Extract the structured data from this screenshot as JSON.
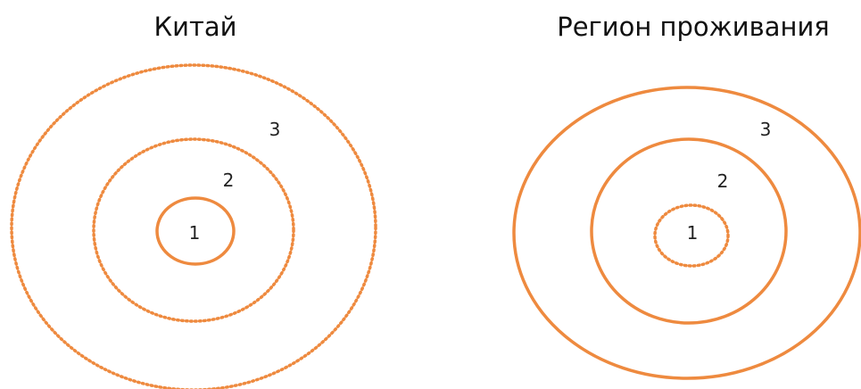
{
  "colors": {
    "ring": "#ee8a3f",
    "text": "#111111",
    "background": "#ffffff"
  },
  "panels": [
    {
      "title": "Китай",
      "rings": [
        {
          "label": "1",
          "style": "solid"
        },
        {
          "label": "2",
          "style": "dotted"
        },
        {
          "label": "3",
          "style": "dotted"
        }
      ]
    },
    {
      "title": "Регион проживания",
      "rings": [
        {
          "label": "1",
          "style": "dotted"
        },
        {
          "label": "2",
          "style": "solid"
        },
        {
          "label": "3",
          "style": "solid"
        }
      ]
    }
  ]
}
